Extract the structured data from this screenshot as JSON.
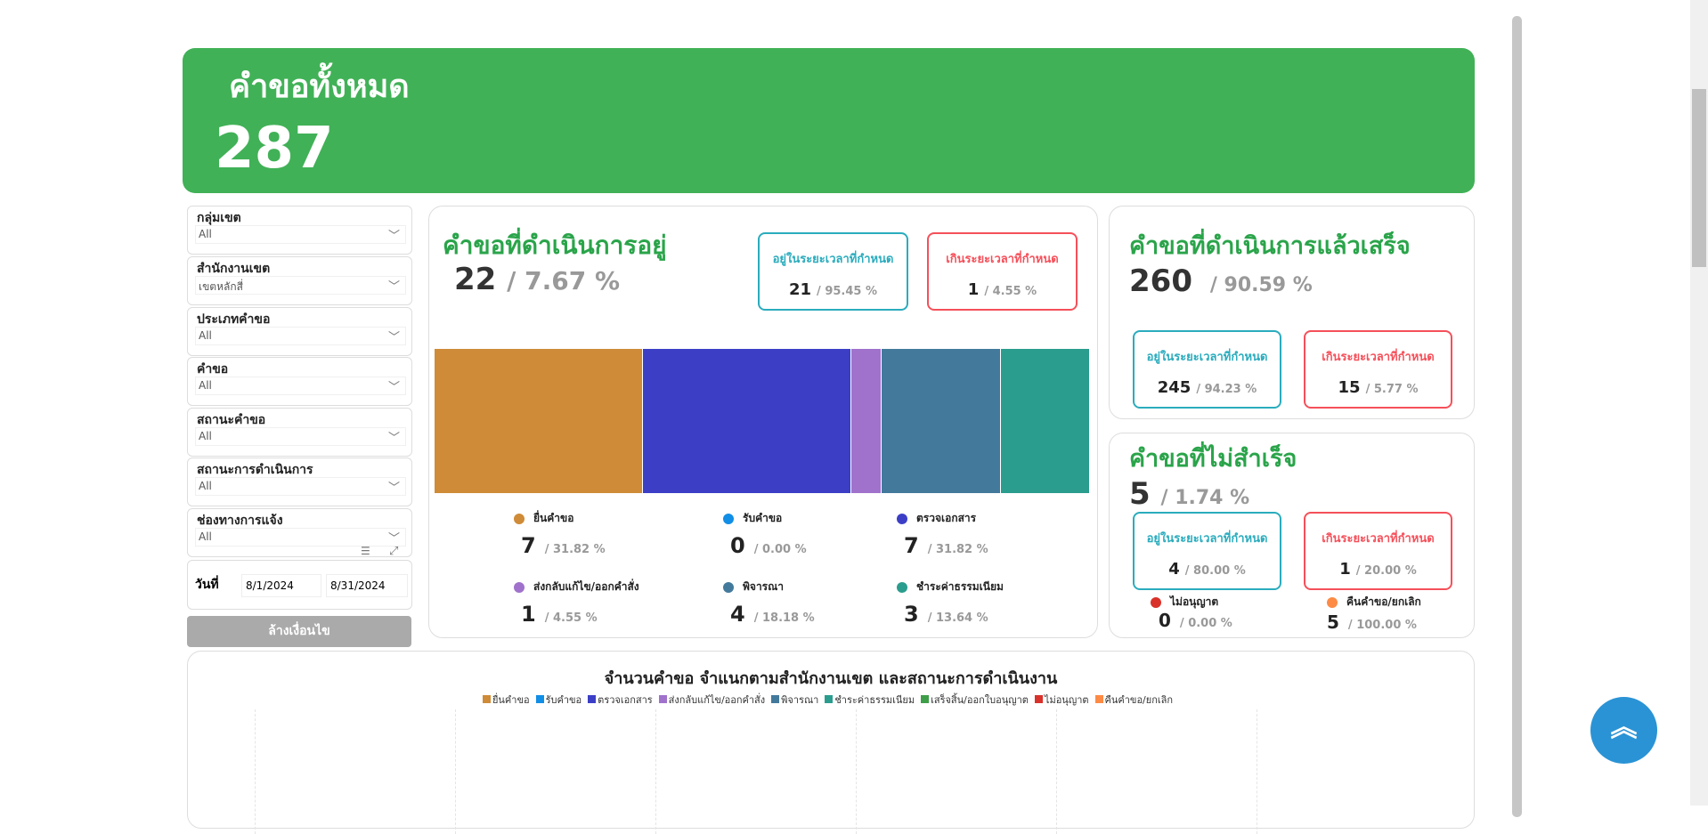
{
  "header": {
    "title": "คำขอทั้งหมด",
    "total": "287"
  },
  "filters": [
    {
      "label": "กลุ่มเขต",
      "value": "All"
    },
    {
      "label": "สำนักงานเขต",
      "value": "เขตหลักสี่"
    },
    {
      "label": "ประเภทคำขอ",
      "value": "All"
    },
    {
      "label": "คำขอ",
      "value": "All"
    },
    {
      "label": "สถานะคำขอ",
      "value": "All"
    },
    {
      "label": "สถานะการดำเนินการ",
      "value": "All"
    },
    {
      "label": "ช่องทางการแจ้ง",
      "value": "All"
    }
  ],
  "date": {
    "label": "วันที่",
    "from": "8/1/2024",
    "to": "8/31/2024"
  },
  "clear_button": "ล้างเงื่อนไข",
  "in_progress": {
    "title": "คำขอที่ดำเนินการอยู่",
    "count": "22",
    "pct": "/ 7.67 %",
    "in_time": {
      "label": "อยู่ในระยะเวลาที่กำหนด",
      "count": "21",
      "pct": "/ 95.45 %"
    },
    "over_time": {
      "label": "เกินระยะเวลาที่กำหนด",
      "count": "1",
      "pct": "/ 4.55 %"
    },
    "stages": [
      {
        "label": "ยื่นคำขอ",
        "count": "7",
        "pct": "/ 31.82 %",
        "value": 7,
        "color": "#cf8b37"
      },
      {
        "label": "รับคำขอ",
        "count": "0",
        "pct": "/ 0.00 %",
        "value": 0,
        "color": "#118ee6"
      },
      {
        "label": "ตรวจเอกสาร",
        "count": "7",
        "pct": "/ 31.82 %",
        "value": 7,
        "color": "#3c3fc6"
      },
      {
        "label": "ส่งกลับแก้ไข/ออกคำสั่ง",
        "count": "1",
        "pct": "/ 4.55 %",
        "value": 1,
        "color": "#a072cc"
      },
      {
        "label": "พิจารณา",
        "count": "4",
        "pct": "/ 18.18 %",
        "value": 4,
        "color": "#437a9c"
      },
      {
        "label": "ชำระค่าธรรมเนียม",
        "count": "3",
        "pct": "/ 13.64 %",
        "value": 3,
        "color": "#2a9d8e"
      }
    ]
  },
  "completed": {
    "title": "คำขอที่ดำเนินการแล้วเสร็จ",
    "count": "260",
    "pct": "/ 90.59 %",
    "in_time": {
      "label": "อยู่ในระยะเวลาที่กำหนด",
      "count": "245",
      "pct": "/ 94.23 %"
    },
    "over_time": {
      "label": "เกินระยะเวลาที่กำหนด",
      "count": "15",
      "pct": "/ 5.77 %"
    }
  },
  "failed": {
    "title": "คำขอที่ไม่สำเร็จ",
    "count": "5",
    "pct": "/ 1.74 %",
    "in_time": {
      "label": "อยู่ในระยะเวลาที่กำหนด",
      "count": "4",
      "pct": "/ 80.00 %"
    },
    "over_time": {
      "label": "เกินระยะเวลาที่กำหนด",
      "count": "1",
      "pct": "/ 20.00 %"
    },
    "not_approved": {
      "label": "ไม่อนุญาต",
      "count": "0",
      "pct": "/ 0.00 %",
      "color": "#d9322a"
    },
    "cancelled": {
      "label": "คืนคำขอ/ยกเลิก",
      "count": "5",
      "pct": "/ 100.00 %",
      "color": "#fd8b45"
    }
  },
  "chart": {
    "title": "จำนวนคำขอ  จำแนกตามสำนักงานเขต และสถานะการดำเนินงาน",
    "legend": [
      {
        "label": "ยื่นคำขอ",
        "color": "#cf8b37"
      },
      {
        "label": "รับคำขอ",
        "color": "#118ee6"
      },
      {
        "label": "ตรวจเอกสาร",
        "color": "#3c3fc6"
      },
      {
        "label": "ส่งกลับแก้ไข/ออกคำสั่ง",
        "color": "#a072cc"
      },
      {
        "label": "พิจารณา",
        "color": "#437a9c"
      },
      {
        "label": "ชำระค่าธรรมเนียม",
        "color": "#2a9d8e"
      },
      {
        "label": "เสร็จสิ้น/ออกใบอนุญาต",
        "color": "#3f9e4a"
      },
      {
        "label": "ไม่อนุญาต",
        "color": "#d9322a"
      },
      {
        "label": "คืนคำขอ/ยกเลิก",
        "color": "#fd8b45"
      }
    ]
  }
}
